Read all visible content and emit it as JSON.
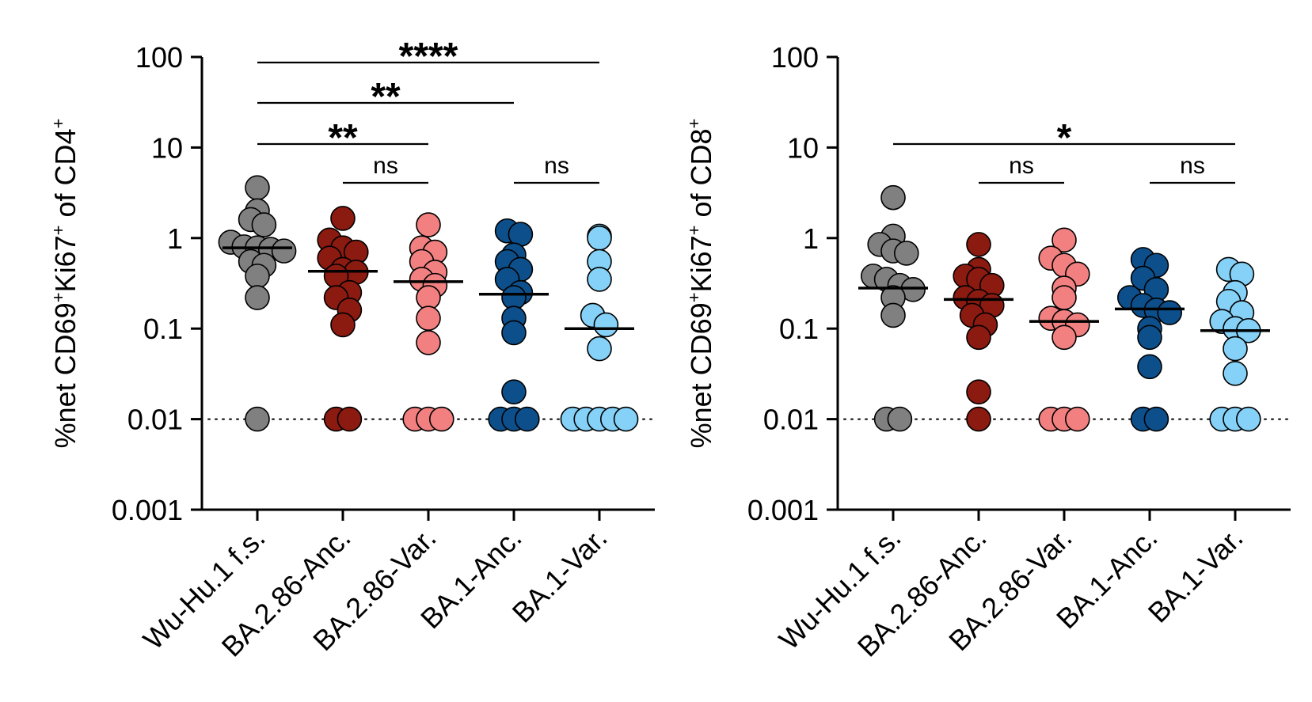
{
  "chart_data": [
    {
      "type": "scatter",
      "scale": "log",
      "ylabel": {
        "prefix": "%net CD69",
        "sup1": "+",
        "mid": "Ki67",
        "sup2": "+",
        "mid2": " of CD4",
        "sup3": "+"
      },
      "ylim": [
        0.001,
        100
      ],
      "yticks": [
        {
          "value": 100,
          "label": "100"
        },
        {
          "value": 10,
          "label": "10"
        },
        {
          "value": 1,
          "label": "1"
        },
        {
          "value": 0.1,
          "label": "0.1"
        },
        {
          "value": 0.01,
          "label": "0.01"
        },
        {
          "value": 0.001,
          "label": "0.001"
        }
      ],
      "reference_line": 0.01,
      "categories": [
        "Wu-Hu.1 f.s.",
        "BA.2.86-Anc.",
        "BA.2.86-Var.",
        "BA.1-Anc.",
        "BA.1-Var."
      ],
      "series": [
        {
          "name": "Wu-Hu.1 f.s.",
          "color": "#808080",
          "median": 0.78,
          "values": [
            3.6,
            2.0,
            1.6,
            1.4,
            0.9,
            0.8,
            0.78,
            0.75,
            0.72,
            0.55,
            0.5,
            0.38,
            0.22,
            0.01
          ]
        },
        {
          "name": "BA.2.86-Anc.",
          "color": "#8b1a10",
          "median": 0.43,
          "values": [
            1.65,
            0.95,
            0.78,
            0.7,
            0.6,
            0.45,
            0.42,
            0.38,
            0.25,
            0.22,
            0.16,
            0.11,
            0.01,
            0.01
          ]
        },
        {
          "name": "BA.2.86-Var.",
          "color": "#f28080",
          "median": 0.33,
          "values": [
            1.4,
            0.78,
            0.7,
            0.55,
            0.42,
            0.35,
            0.3,
            0.22,
            0.13,
            0.07,
            0.01,
            0.01,
            0.01
          ]
        },
        {
          "name": "BA.1-Anc.",
          "color": "#0d4f8b",
          "median": 0.24,
          "values": [
            1.2,
            1.1,
            0.65,
            0.55,
            0.45,
            0.35,
            0.25,
            0.22,
            0.13,
            0.09,
            0.02,
            0.01,
            0.01,
            0.01
          ]
        },
        {
          "name": "BA.1-Var.",
          "color": "#85d1f7",
          "median": 0.1,
          "values": [
            1.05,
            1.0,
            0.55,
            0.35,
            0.14,
            0.11,
            0.06,
            0.01,
            0.01,
            0.01,
            0.01,
            0.01
          ]
        }
      ],
      "significance": [
        {
          "from": 0,
          "to": 4,
          "label": "****",
          "y": 79
        },
        {
          "from": 0,
          "to": 3,
          "label": "**",
          "y": 130
        },
        {
          "from": 0,
          "to": 2,
          "label": "**",
          "y": 182
        },
        {
          "from": 1,
          "to": 2,
          "label": "ns",
          "y": 231
        },
        {
          "from": 3,
          "to": 4,
          "label": "ns",
          "y": 231
        }
      ]
    },
    {
      "type": "scatter",
      "scale": "log",
      "ylabel": {
        "prefix": "%net CD69",
        "sup1": "+",
        "mid": "Ki67",
        "sup2": "+",
        "mid2": " of CD8",
        "sup3": "+"
      },
      "ylim": [
        0.001,
        100
      ],
      "yticks": [
        {
          "value": 100,
          "label": "100"
        },
        {
          "value": 10,
          "label": "10"
        },
        {
          "value": 1,
          "label": "1"
        },
        {
          "value": 0.1,
          "label": "0.1"
        },
        {
          "value": 0.01,
          "label": "0.01"
        },
        {
          "value": 0.001,
          "label": "0.001"
        }
      ],
      "reference_line": 0.01,
      "categories": [
        "Wu-Hu.1 f.s.",
        "BA.2.86-Anc.",
        "BA.2.86-Var.",
        "BA.1-Anc.",
        "BA.1-Var."
      ],
      "series": [
        {
          "name": "Wu-Hu.1 f.s.",
          "color": "#808080",
          "median": 0.28,
          "values": [
            2.8,
            1.05,
            0.85,
            0.72,
            0.68,
            0.38,
            0.35,
            0.3,
            0.27,
            0.22,
            0.14,
            0.01,
            0.01
          ]
        },
        {
          "name": "BA.2.86-Anc.",
          "color": "#8b1a10",
          "median": 0.21,
          "values": [
            0.85,
            0.45,
            0.38,
            0.35,
            0.3,
            0.22,
            0.2,
            0.18,
            0.14,
            0.11,
            0.08,
            0.02,
            0.01
          ]
        },
        {
          "name": "BA.2.86-Var.",
          "color": "#f28080",
          "median": 0.12,
          "values": [
            0.95,
            0.6,
            0.5,
            0.4,
            0.28,
            0.22,
            0.13,
            0.12,
            0.11,
            0.08,
            0.01,
            0.01,
            0.01
          ]
        },
        {
          "name": "BA.1-Anc.",
          "color": "#0d4f8b",
          "median": 0.165,
          "values": [
            0.58,
            0.5,
            0.36,
            0.27,
            0.22,
            0.18,
            0.16,
            0.15,
            0.1,
            0.08,
            0.038,
            0.01,
            0.01
          ]
        },
        {
          "name": "BA.1-Var.",
          "color": "#85d1f7",
          "median": 0.095,
          "values": [
            0.45,
            0.4,
            0.25,
            0.2,
            0.15,
            0.12,
            0.1,
            0.095,
            0.06,
            0.032,
            0.01,
            0.01,
            0.01
          ]
        }
      ],
      "significance": [
        {
          "from": 0,
          "to": 4,
          "label": "*",
          "y": 182
        },
        {
          "from": 1,
          "to": 2,
          "label": "ns",
          "y": 231
        },
        {
          "from": 3,
          "to": 4,
          "label": "ns",
          "y": 231
        }
      ]
    }
  ]
}
